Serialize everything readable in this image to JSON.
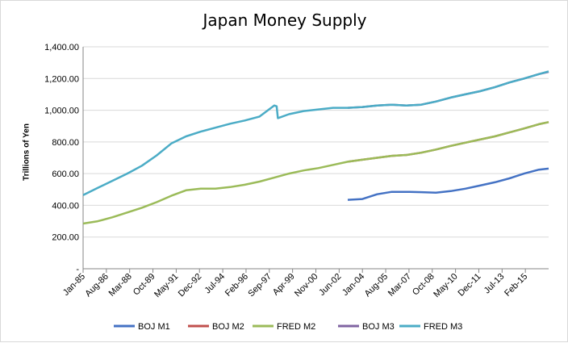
{
  "chart_data": {
    "type": "line",
    "title": "Japan Money Supply",
    "xlabel": "",
    "ylabel": "Trillions of Yen",
    "ylim": [
      0,
      1400
    ],
    "yticks": [
      "-",
      "200.00",
      "400.00",
      "600.00",
      "800.00",
      "1,000.00",
      "1,200.00",
      "1,400.00"
    ],
    "x_tick_labels": [
      "Jan-85",
      "Aug-86",
      "Mar-88",
      "Oct-89",
      "May-91",
      "Dec-92",
      "Jul-94",
      "Feb-96",
      "Sep-97",
      "Apr-99",
      "Nov-00",
      "Jun-02",
      "Jan-04",
      "Aug-05",
      "Mar-07",
      "Oct-08",
      "May-10",
      "Dec-11",
      "Jul-13",
      "Feb-15"
    ],
    "x_range": [
      "Jan-85",
      "Sep-16"
    ],
    "grid": "horizontal",
    "legend_position": "bottom",
    "series": [
      {
        "name": "BOJ M1",
        "color": "#4472C4",
        "points": [
          [
            "Jan-03",
            435
          ],
          [
            "Jan-04",
            440
          ],
          [
            "Jan-05",
            470
          ],
          [
            "Jan-06",
            485
          ],
          [
            "Jan-07",
            485
          ],
          [
            "Jan-08",
            483
          ],
          [
            "Jan-09",
            480
          ],
          [
            "Jan-10",
            490
          ],
          [
            "Jan-11",
            505
          ],
          [
            "Jan-12",
            525
          ],
          [
            "Jan-13",
            545
          ],
          [
            "Jan-14",
            570
          ],
          [
            "Jan-15",
            600
          ],
          [
            "Jan-16",
            625
          ],
          [
            "Sep-16",
            632
          ]
        ]
      },
      {
        "name": "BOJ M2",
        "color": "#C0504D",
        "points": [
          [
            "Jan-03",
            675
          ],
          [
            "Jan-04",
            688
          ],
          [
            "Jan-05",
            700
          ],
          [
            "Jan-06",
            712
          ],
          [
            "Jan-07",
            718
          ],
          [
            "Jan-08",
            732
          ],
          [
            "Jan-09",
            752
          ],
          [
            "Jan-10",
            775
          ],
          [
            "Jan-11",
            795
          ],
          [
            "Jan-12",
            815
          ],
          [
            "Jan-13",
            835
          ],
          [
            "Jan-14",
            860
          ],
          [
            "Jan-15",
            885
          ],
          [
            "Jan-16",
            912
          ],
          [
            "Sep-16",
            925
          ]
        ]
      },
      {
        "name": "FRED M2",
        "color": "#9BBB59",
        "points": [
          [
            "Jan-85",
            285
          ],
          [
            "Jan-86",
            300
          ],
          [
            "Jan-87",
            325
          ],
          [
            "Jan-88",
            355
          ],
          [
            "Jan-89",
            385
          ],
          [
            "Jan-90",
            420
          ],
          [
            "Jan-91",
            460
          ],
          [
            "Jan-92",
            495
          ],
          [
            "Jan-93",
            505
          ],
          [
            "Jan-94",
            505
          ],
          [
            "Jan-95",
            515
          ],
          [
            "Jan-96",
            530
          ],
          [
            "Jan-97",
            550
          ],
          [
            "Jan-98",
            575
          ],
          [
            "Jan-99",
            600
          ],
          [
            "Jan-00",
            620
          ],
          [
            "Jan-01",
            635
          ],
          [
            "Jan-02",
            655
          ],
          [
            "Jan-03",
            675
          ],
          [
            "Jan-04",
            688
          ],
          [
            "Jan-05",
            700
          ],
          [
            "Jan-06",
            712
          ],
          [
            "Jan-07",
            718
          ],
          [
            "Jan-08",
            732
          ],
          [
            "Jan-09",
            752
          ],
          [
            "Jan-10",
            775
          ],
          [
            "Jan-11",
            795
          ],
          [
            "Jan-12",
            815
          ],
          [
            "Jan-13",
            835
          ],
          [
            "Jan-14",
            860
          ],
          [
            "Jan-15",
            885
          ],
          [
            "Jan-16",
            912
          ],
          [
            "Sep-16",
            925
          ]
        ]
      },
      {
        "name": "BOJ M3",
        "color": "#8064A2",
        "points": [
          [
            "Jan-03",
            1015
          ],
          [
            "Jan-04",
            1020
          ],
          [
            "Jan-05",
            1030
          ],
          [
            "Jan-06",
            1035
          ],
          [
            "Jan-07",
            1030
          ],
          [
            "Jan-08",
            1035
          ],
          [
            "Jan-09",
            1055
          ],
          [
            "Jan-10",
            1080
          ],
          [
            "Jan-11",
            1100
          ],
          [
            "Jan-12",
            1120
          ],
          [
            "Jan-13",
            1145
          ],
          [
            "Jan-14",
            1175
          ],
          [
            "Jan-15",
            1200
          ],
          [
            "Jan-16",
            1228
          ],
          [
            "Sep-16",
            1242
          ]
        ]
      },
      {
        "name": "FRED M3",
        "color": "#4BACC6",
        "points": [
          [
            "Jan-85",
            465
          ],
          [
            "Jan-86",
            510
          ],
          [
            "Jan-87",
            555
          ],
          [
            "Jan-88",
            600
          ],
          [
            "Jan-89",
            650
          ],
          [
            "Jan-90",
            715
          ],
          [
            "Jan-91",
            790
          ],
          [
            "Jan-92",
            835
          ],
          [
            "Jan-93",
            865
          ],
          [
            "Jan-94",
            890
          ],
          [
            "Jan-95",
            915
          ],
          [
            "Jan-96",
            935
          ],
          [
            "Jan-97",
            960
          ],
          [
            "Jan-98",
            1030
          ],
          [
            "Mar-98",
            1025
          ],
          [
            "Apr-98",
            950
          ],
          [
            "Jan-99",
            975
          ],
          [
            "Jan-00",
            995
          ],
          [
            "Jan-01",
            1005
          ],
          [
            "Jan-02",
            1015
          ],
          [
            "Jan-03",
            1015
          ],
          [
            "Jan-04",
            1020
          ],
          [
            "Jan-05",
            1030
          ],
          [
            "Jan-06",
            1035
          ],
          [
            "Jan-07",
            1030
          ],
          [
            "Jan-08",
            1035
          ],
          [
            "Jan-09",
            1055
          ],
          [
            "Jan-10",
            1080
          ],
          [
            "Jan-11",
            1100
          ],
          [
            "Jan-12",
            1120
          ],
          [
            "Jan-13",
            1145
          ],
          [
            "Jan-14",
            1175
          ],
          [
            "Jan-15",
            1200
          ],
          [
            "Jan-16",
            1228
          ],
          [
            "Sep-16",
            1245
          ]
        ]
      }
    ]
  }
}
